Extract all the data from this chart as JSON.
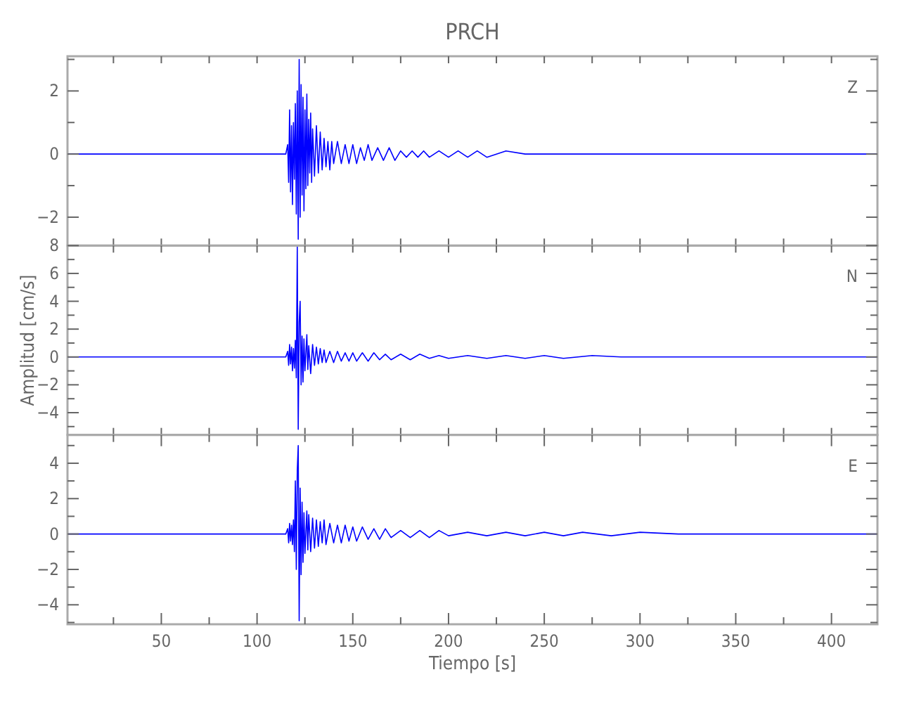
{
  "chart_data": [
    {
      "type": "line",
      "title": "PRCH",
      "annotations": [
        "Z"
      ],
      "xlim": [
        1,
        424
      ],
      "xticks": [
        {
          "value": 25,
          "label": null
        },
        {
          "value": 50,
          "label": null
        },
        {
          "value": 75,
          "label": null
        },
        {
          "value": 100,
          "label": null
        },
        {
          "value": 125,
          "label": null
        },
        {
          "value": 150,
          "label": null
        },
        {
          "value": 175,
          "label": null
        },
        {
          "value": 200,
          "label": null
        },
        {
          "value": 225,
          "label": null
        },
        {
          "value": 250,
          "label": null
        },
        {
          "value": 275,
          "label": null
        },
        {
          "value": 300,
          "label": null
        },
        {
          "value": 325,
          "label": null
        },
        {
          "value": 350,
          "label": null
        },
        {
          "value": 375,
          "label": null
        },
        {
          "value": 400,
          "label": null
        }
      ],
      "ylim": [
        -2.9,
        3.1
      ],
      "yticks": [
        {
          "value": -2,
          "label": "−2"
        },
        {
          "value": -1,
          "label": null
        },
        0,
        {
          "value": 1,
          "label": null
        },
        2,
        {
          "value": 3,
          "label": null
        }
      ],
      "tick_labels": "y",
      "grid": false,
      "series": [
        {
          "color": "#0000ff",
          "x": [
            1,
            115,
            116,
            116.5,
            117,
            117.5,
            118,
            118.5,
            119,
            119.5,
            120,
            120.5,
            121,
            121.5,
            122,
            122.5,
            123,
            123.5,
            124,
            124.5,
            125,
            125.5,
            126,
            126.5,
            127,
            127.5,
            128,
            128.5,
            129,
            130,
            131,
            132,
            133,
            134,
            135,
            136,
            137,
            138,
            139,
            140,
            142,
            144,
            146,
            148,
            150,
            152,
            154,
            156,
            158,
            160,
            163,
            166,
            169,
            172,
            175,
            178,
            181,
            184,
            187,
            190,
            195,
            200,
            205,
            210,
            215,
            220,
            230,
            240,
            250,
            265,
            280,
            300,
            320,
            340,
            360,
            380,
            400,
            424
          ],
          "values": [
            0,
            0,
            0.3,
            -0.9,
            1.4,
            -1.2,
            0.9,
            -1.6,
            1.0,
            -0.8,
            1.6,
            -1.9,
            2.0,
            -2.7,
            3.0,
            -2.0,
            2.2,
            -1.3,
            1.8,
            -1.8,
            1.4,
            -1.1,
            1.9,
            -1.0,
            1.1,
            -0.6,
            1.3,
            -0.9,
            0.8,
            -0.7,
            0.9,
            -0.6,
            0.7,
            -0.5,
            0.5,
            -0.4,
            0.4,
            -0.5,
            0.4,
            -0.3,
            0.4,
            -0.3,
            0.3,
            -0.3,
            0.3,
            -0.3,
            0.2,
            -0.2,
            0.3,
            -0.2,
            0.2,
            -0.2,
            0.2,
            -0.2,
            0.1,
            -0.1,
            0.1,
            -0.1,
            0.1,
            -0.1,
            0.1,
            -0.1,
            0.1,
            -0.1,
            0.1,
            -0.1,
            0.1,
            0,
            0,
            0,
            0,
            0,
            0,
            0,
            0,
            0,
            0,
            0
          ]
        }
      ]
    },
    {
      "type": "line",
      "ylabel": "Amplitud [cm/s]",
      "annotations": [
        "N"
      ],
      "xlim": [
        1,
        424
      ],
      "xticks": [
        {
          "value": 25,
          "label": null
        },
        {
          "value": 50,
          "label": null
        },
        {
          "value": 75,
          "label": null
        },
        {
          "value": 100,
          "label": null
        },
        {
          "value": 125,
          "label": null
        },
        {
          "value": 150,
          "label": null
        },
        {
          "value": 175,
          "label": null
        },
        {
          "value": 200,
          "label": null
        },
        {
          "value": 225,
          "label": null
        },
        {
          "value": 250,
          "label": null
        },
        {
          "value": 275,
          "label": null
        },
        {
          "value": 300,
          "label": null
        },
        {
          "value": 325,
          "label": null
        },
        {
          "value": 350,
          "label": null
        },
        {
          "value": 375,
          "label": null
        },
        {
          "value": 400,
          "label": null
        }
      ],
      "ylim": [
        -5.6,
        8
      ],
      "yticks": [
        {
          "value": -5,
          "label": null
        },
        {
          "value": -4,
          "label": "−4"
        },
        {
          "value": -3,
          "label": null
        },
        {
          "value": -2,
          "label": "−2"
        },
        {
          "value": -1,
          "label": null
        },
        0,
        {
          "value": 1,
          "label": null
        },
        2,
        {
          "value": 3,
          "label": null
        },
        4,
        {
          "value": 5,
          "label": null
        },
        6,
        {
          "value": 7,
          "label": null
        },
        8
      ],
      "tick_labels": "y",
      "grid": false,
      "series": [
        {
          "color": "#0000ff",
          "x": [
            1,
            115,
            116,
            116.5,
            117,
            117.5,
            118,
            118.5,
            119,
            119.5,
            120,
            120.5,
            121,
            121.5,
            122,
            122.5,
            123,
            123.5,
            124,
            124.5,
            125,
            126,
            126.5,
            127,
            128,
            129,
            130,
            131,
            132,
            133,
            134,
            135,
            136,
            138,
            140,
            142,
            144,
            146,
            148,
            150,
            152,
            155,
            158,
            161,
            164,
            167,
            170,
            175,
            180,
            185,
            190,
            195,
            200,
            210,
            220,
            230,
            240,
            250,
            260,
            275,
            290,
            310,
            330,
            350,
            370,
            390,
            410,
            424
          ],
          "values": [
            0,
            0,
            0.4,
            -0.6,
            0.9,
            -0.5,
            0.7,
            -1.0,
            0.6,
            -0.8,
            1.2,
            -1.5,
            7.9,
            -5.2,
            2.5,
            4.0,
            -2.0,
            1.5,
            -1.8,
            1.3,
            -1.0,
            1.6,
            -0.9,
            0.8,
            -1.2,
            0.9,
            -0.6,
            0.7,
            -0.5,
            0.6,
            -0.4,
            0.5,
            -0.4,
            0.4,
            -0.4,
            0.4,
            -0.3,
            0.3,
            -0.3,
            0.3,
            -0.3,
            0.3,
            -0.3,
            0.3,
            -0.2,
            0.2,
            -0.2,
            0.2,
            -0.2,
            0.2,
            -0.1,
            0.1,
            -0.1,
            0.1,
            -0.1,
            0.1,
            -0.1,
            0.1,
            -0.1,
            0.1,
            0,
            0,
            0,
            0,
            0,
            0,
            0,
            0
          ]
        }
      ]
    },
    {
      "type": "line",
      "xlabel": "Tiempo [s]",
      "annotations": [
        "E"
      ],
      "xlim": [
        1,
        424
      ],
      "xticks": [
        {
          "value": 25,
          "label": null
        },
        50,
        {
          "value": 75,
          "label": null
        },
        100,
        {
          "value": 125,
          "label": null
        },
        150,
        {
          "value": 175,
          "label": null
        },
        200,
        {
          "value": 225,
          "label": null
        },
        250,
        {
          "value": 275,
          "label": null
        },
        300,
        {
          "value": 325,
          "label": null
        },
        350,
        {
          "value": 375,
          "label": null
        },
        400
      ],
      "ylim": [
        -5.1,
        5.6
      ],
      "yticks": [
        {
          "value": -5,
          "label": null
        },
        {
          "value": -4,
          "label": "−4"
        },
        {
          "value": -3,
          "label": null
        },
        {
          "value": -2,
          "label": "−2"
        },
        {
          "value": -1,
          "label": null
        },
        0,
        {
          "value": 1,
          "label": null
        },
        2,
        {
          "value": 3,
          "label": null
        },
        4,
        {
          "value": 5,
          "label": null
        }
      ],
      "grid": false,
      "series": [
        {
          "color": "#0000ff",
          "x": [
            1,
            115,
            116,
            116.5,
            117,
            117.5,
            118,
            118.5,
            119,
            119.5,
            120,
            120.5,
            121,
            121.5,
            122,
            122.5,
            123,
            123.5,
            124,
            124.5,
            125,
            126,
            126.5,
            127,
            128,
            129,
            130,
            131,
            132,
            133,
            134,
            135,
            136,
            138,
            140,
            142,
            144,
            146,
            148,
            150,
            152,
            155,
            158,
            161,
            164,
            167,
            170,
            175,
            180,
            185,
            190,
            195,
            200,
            210,
            220,
            230,
            240,
            250,
            260,
            270,
            285,
            300,
            320,
            340,
            360,
            380,
            400,
            424
          ],
          "values": [
            0,
            0,
            0.3,
            -0.5,
            0.6,
            -0.4,
            0.5,
            -0.6,
            0.8,
            -1.0,
            3.0,
            -2.0,
            3.6,
            5.0,
            -4.9,
            2.6,
            -2.3,
            1.8,
            -1.6,
            1.2,
            -1.1,
            1.3,
            -0.9,
            1.1,
            -1.0,
            0.9,
            -0.8,
            0.8,
            -0.7,
            0.7,
            -0.5,
            0.8,
            -0.6,
            0.6,
            -0.5,
            0.5,
            -0.5,
            0.5,
            -0.4,
            0.4,
            -0.4,
            0.4,
            -0.3,
            0.3,
            -0.3,
            0.3,
            -0.2,
            0.2,
            -0.2,
            0.2,
            -0.2,
            0.2,
            -0.1,
            0.1,
            -0.1,
            0.1,
            -0.1,
            0.1,
            -0.1,
            0.1,
            -0.1,
            0.1,
            0,
            0,
            0,
            0,
            0,
            0
          ]
        }
      ]
    }
  ]
}
